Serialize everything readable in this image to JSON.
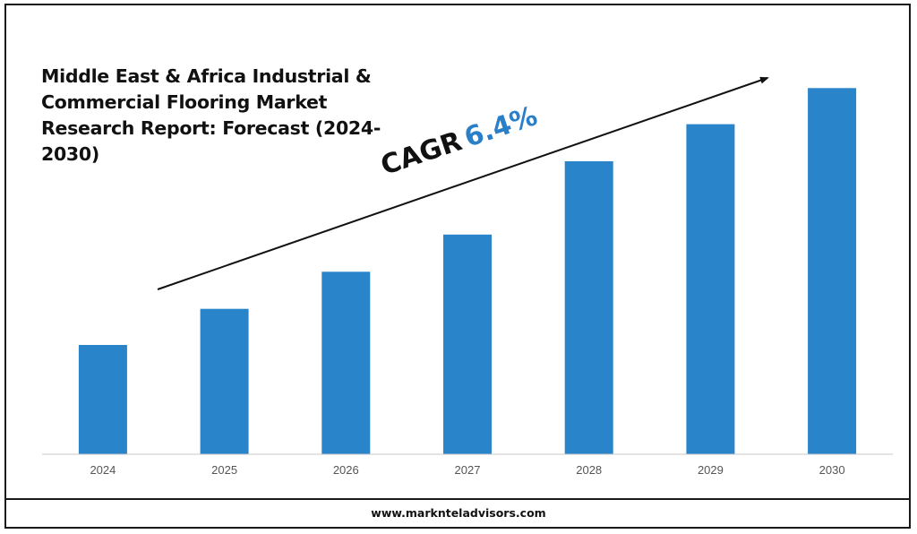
{
  "chart_data": {
    "type": "bar",
    "title": "Middle East & Africa Industrial & Commercial Flooring Market Research Report: Forecast (2024-2030)",
    "categories": [
      "2024",
      "2025",
      "2026",
      "2027",
      "2028",
      "2029",
      "2030"
    ],
    "values": [
      1.0,
      1.33,
      1.67,
      2.01,
      2.68,
      3.02,
      3.35
    ],
    "ylim": [
      0,
      3.5
    ],
    "bar_color": "#2a84c9",
    "annotation": {
      "label": "CAGR",
      "value": "6.4%",
      "value_color": "#2a7fc9"
    },
    "grid": false,
    "legend": "none"
  },
  "footer": {
    "website": "www.marknteladvisors.com"
  }
}
